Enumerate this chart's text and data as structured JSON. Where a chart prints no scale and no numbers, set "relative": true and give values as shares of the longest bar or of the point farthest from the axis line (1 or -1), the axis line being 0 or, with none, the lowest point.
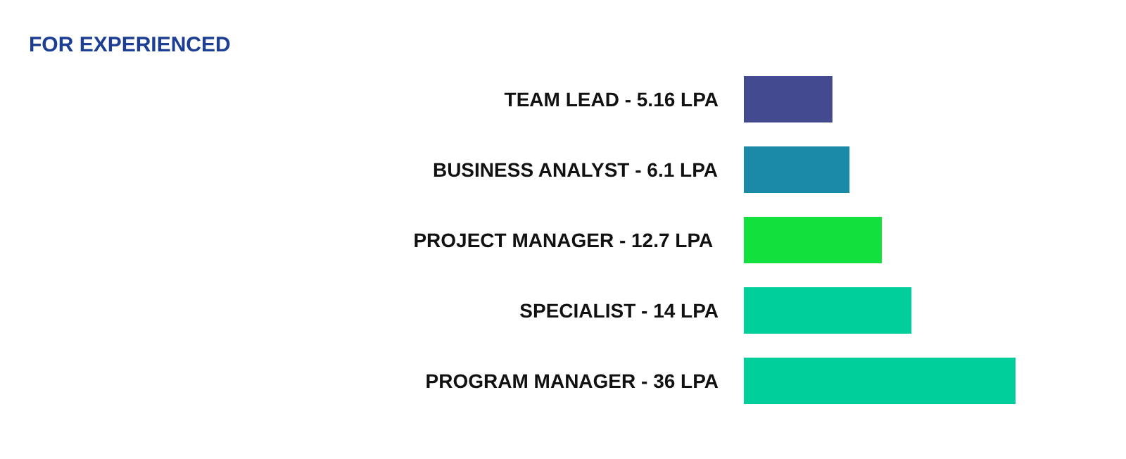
{
  "chart_data": {
    "type": "bar",
    "orientation": "horizontal",
    "relative": true,
    "title": "FOR EXPERIENCED",
    "categories": [
      "TEAM LEAD - 5.16 LPA",
      "BUSINESS ANALYST - 6.1 LPA",
      "PROJECT MANAGER - 12.7  LPA",
      "SPECIALIST - 14 LPA",
      "PROGRAM MANAGER - 36 LPA"
    ],
    "values": [
      0.326,
      0.389,
      0.508,
      0.617,
      1
    ],
    "colors": [
      "#444a8f",
      "#1a8aa8",
      "#12e03c",
      "#00cf9c",
      "#00cf9c"
    ],
    "grid": false
  }
}
